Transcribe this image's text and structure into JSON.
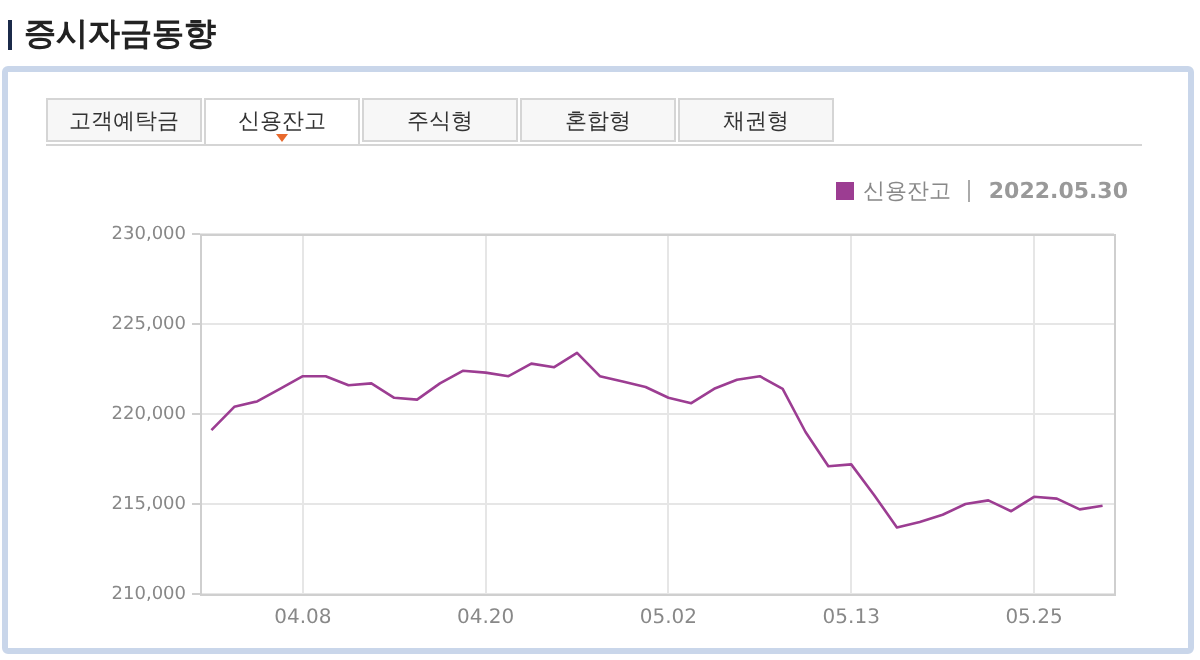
{
  "chart_data": {
    "type": "line",
    "title": "증시자금동향",
    "subtitle": "2022.05.30",
    "annotations": [
      "고객예탁금",
      "신용잔고",
      "주식형",
      "혼합형",
      "채권형"
    ],
    "categories": [
      null,
      null,
      null,
      null,
      "04.08",
      null,
      null,
      null,
      null,
      null,
      null,
      null,
      "04.20",
      null,
      null,
      null,
      null,
      null,
      null,
      null,
      "05.02",
      null,
      null,
      null,
      null,
      null,
      null,
      null,
      "05.13",
      null,
      null,
      null,
      null,
      null,
      null,
      null,
      "05.25",
      null,
      null,
      null
    ],
    "series": [
      {
        "name": "신용잔고",
        "color": "#9c3d92",
        "values": [
          219100,
          220400,
          220700,
          221400,
          222100,
          222100,
          221600,
          221700,
          220900,
          220800,
          221700,
          222400,
          222300,
          222100,
          222800,
          222600,
          223400,
          222100,
          221800,
          221500,
          220900,
          220600,
          221400,
          221900,
          222100,
          221400,
          219000,
          217100,
          217200,
          215500,
          213700,
          214000,
          214400,
          215000,
          215200,
          214600,
          215400,
          215300,
          214700,
          214900
        ]
      }
    ],
    "ylim": [
      210000,
      230000
    ],
    "yticks": [
      {
        "value": 210000,
        "label": "210,000"
      },
      {
        "value": 215000,
        "label": "215,000"
      },
      {
        "value": 220000,
        "label": "220,000"
      },
      {
        "value": 225000,
        "label": "225,000"
      },
      {
        "value": 230000,
        "label": "230,000"
      }
    ],
    "grid": true,
    "legend": "top right",
    "marker": "none",
    "line_style": "solid"
  }
}
